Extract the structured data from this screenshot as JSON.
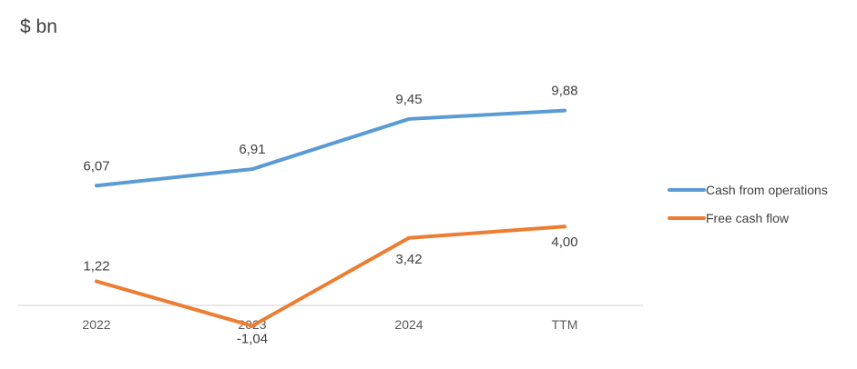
{
  "chart_data": {
    "type": "line",
    "unit_label": "$ bn",
    "categories": [
      "2022",
      "2023",
      "2024",
      "TTM"
    ],
    "series": [
      {
        "name": "Cash from operations",
        "color": "#5B9BD5",
        "values": [
          6.07,
          6.91,
          9.45,
          9.88
        ],
        "labels": [
          "6,07",
          "6,91",
          "9,45",
          "9,88"
        ]
      },
      {
        "name": "Free cash flow",
        "color": "#ED7D31",
        "values": [
          1.22,
          -1.04,
          3.42,
          4.0
        ],
        "labels": [
          "1,22",
          "-1,04",
          "3,42",
          "4,00"
        ]
      }
    ],
    "ylim": [
      -1.3,
      11.5
    ],
    "grid": false,
    "legend_position": "right"
  }
}
